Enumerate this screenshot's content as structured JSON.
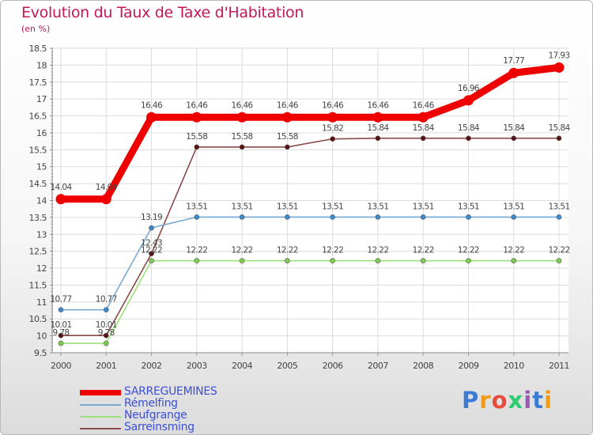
{
  "chart_data": {
    "type": "line",
    "title": "Evolution du Taux de Taxe d'Habitation",
    "subtitle": "(en %)",
    "x": [
      "2000",
      "2001",
      "2002",
      "2003",
      "2004",
      "2005",
      "2006",
      "2007",
      "2008",
      "2009",
      "2010",
      "2011"
    ],
    "ylim": [
      9.5,
      18.5
    ],
    "ytick_step": 0.5,
    "yticks": [
      "9.5",
      "10",
      "10.5",
      "11",
      "11.5",
      "12",
      "12.5",
      "13",
      "13.5",
      "14",
      "14.5",
      "15",
      "15.5",
      "16",
      "16.5",
      "17",
      "17.5",
      "18",
      "18.5"
    ],
    "grid": true,
    "series": [
      {
        "name": "SARREGUEMINES",
        "color": "#ee0000",
        "marker_fill": "#ee0000",
        "bold": true,
        "values": [
          14.04,
          14.04,
          16.46,
          16.46,
          16.46,
          16.46,
          16.46,
          16.46,
          16.46,
          16.96,
          17.77,
          17.93
        ],
        "labels": [
          "14.04",
          "14.04",
          "16.46",
          "16.46",
          "16.46",
          "16.46",
          "16.46",
          "16.46",
          "16.46",
          "16.96",
          "17.77",
          "17.93"
        ]
      },
      {
        "name": "Rémelfing",
        "color": "#7aaad2",
        "marker_fill": "#3b8ad0",
        "values": [
          10.77,
          10.77,
          13.19,
          13.51,
          13.51,
          13.51,
          13.51,
          13.51,
          13.51,
          13.51,
          13.51,
          13.51
        ],
        "labels": [
          "10.77",
          "10.77",
          "13.19",
          "13.51",
          "13.51",
          "13.51",
          "13.51",
          "13.51",
          "13.51",
          "13.51",
          "13.51",
          "13.51"
        ]
      },
      {
        "name": "Neufgrange",
        "color": "#9ce07a",
        "marker_fill": "#7ed04e",
        "values": [
          9.78,
          9.78,
          12.22,
          12.22,
          12.22,
          12.22,
          12.22,
          12.22,
          12.22,
          12.22,
          12.22,
          12.22
        ],
        "labels": [
          "9.78",
          "9.78",
          "12.22",
          "12.22",
          "12.22",
          "12.22",
          "12.22",
          "12.22",
          "12.22",
          "12.22",
          "12.22",
          "12.22"
        ]
      },
      {
        "name": "Sarreinsming",
        "color": "#8a4a4a",
        "marker_fill": "#5a1010",
        "values": [
          10.01,
          10.01,
          12.43,
          15.58,
          15.58,
          15.58,
          15.82,
          15.84,
          15.84,
          15.84,
          15.84,
          15.84
        ],
        "labels": [
          "10.01",
          "10.01",
          "12.43",
          "15.58",
          "15.58",
          "15.58",
          "15.82",
          "15.84",
          "15.84",
          "15.84",
          "15.84",
          "15.84"
        ]
      }
    ]
  },
  "legend": {
    "items": [
      {
        "label": "SARREGUEMINES",
        "color": "#ee0000"
      },
      {
        "label": "Rémelfing",
        "color": "#7aaad2"
      },
      {
        "label": "Neufgrange",
        "color": "#9ce07a"
      },
      {
        "label": "Sarreinsming",
        "color": "#8a4a4a"
      }
    ]
  },
  "logo": {
    "text": "Proxiti"
  }
}
